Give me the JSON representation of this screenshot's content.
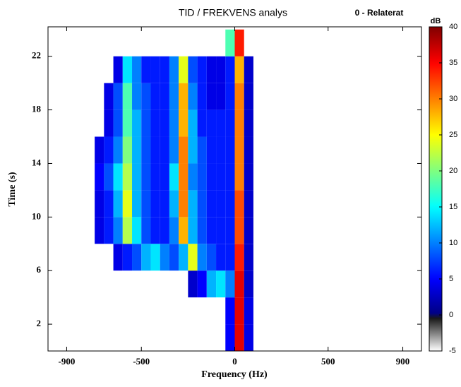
{
  "chart_data": {
    "type": "heatmap",
    "title": "TID / FREKVENS analys",
    "annotation": "0 - Relaterat",
    "x_label": "Frequency (Hz)",
    "y_label": "Time (s)",
    "xlim": [
      -1000,
      1000
    ],
    "ylim": [
      0,
      24.2
    ],
    "xticks": [
      -900,
      -500,
      0,
      500,
      900
    ],
    "yticks": [
      2,
      6,
      10,
      14,
      18,
      22
    ],
    "x_edges": [
      -800,
      -750,
      -700,
      -650,
      -600,
      -550,
      -500,
      -450,
      -400,
      -350,
      -300,
      -250,
      -200,
      -150,
      -100,
      -50,
      0,
      50,
      100
    ],
    "y_edges": [
      0,
      2,
      4,
      6,
      8,
      10,
      12,
      14,
      16,
      18,
      20,
      22,
      24
    ],
    "z": [
      [
        null,
        null,
        null,
        null,
        null,
        null,
        null,
        null,
        null,
        null,
        null,
        null,
        null,
        null,
        null,
        5,
        36,
        4
      ],
      [
        null,
        null,
        null,
        null,
        null,
        null,
        null,
        null,
        null,
        null,
        null,
        null,
        null,
        null,
        null,
        5,
        36,
        4
      ],
      [
        null,
        null,
        null,
        null,
        null,
        null,
        null,
        null,
        null,
        null,
        null,
        3,
        5,
        12,
        14,
        10,
        36,
        3
      ],
      [
        null,
        null,
        null,
        4,
        6,
        8,
        12,
        14,
        10,
        8,
        12,
        24,
        10,
        8,
        6,
        6,
        34,
        3
      ],
      [
        null,
        4,
        6,
        10,
        22,
        14,
        8,
        6,
        6,
        10,
        28,
        12,
        8,
        6,
        6,
        6,
        32,
        3
      ],
      [
        null,
        4,
        6,
        12,
        24,
        12,
        8,
        6,
        6,
        12,
        30,
        12,
        8,
        6,
        6,
        6,
        32,
        3
      ],
      [
        null,
        5,
        8,
        14,
        22,
        12,
        8,
        6,
        6,
        14,
        30,
        10,
        8,
        6,
        6,
        6,
        30,
        3
      ],
      [
        null,
        4,
        6,
        10,
        20,
        12,
        8,
        6,
        6,
        10,
        30,
        12,
        8,
        6,
        6,
        6,
        30,
        3
      ],
      [
        null,
        null,
        4,
        8,
        18,
        12,
        8,
        6,
        6,
        10,
        28,
        12,
        6,
        6,
        6,
        6,
        30,
        3
      ],
      [
        null,
        null,
        4,
        8,
        18,
        10,
        8,
        6,
        6,
        10,
        28,
        10,
        6,
        4,
        4,
        6,
        30,
        3
      ],
      [
        null,
        null,
        null,
        4,
        14,
        10,
        6,
        6,
        6,
        10,
        24,
        8,
        6,
        4,
        4,
        6,
        28,
        3
      ],
      [
        null,
        null,
        null,
        null,
        null,
        null,
        null,
        null,
        null,
        null,
        null,
        null,
        null,
        null,
        null,
        18,
        34,
        null
      ]
    ],
    "colormap": "jet",
    "colorbar": {
      "label": "dB",
      "lim": [
        -5,
        40
      ],
      "ticks": [
        40,
        35,
        30,
        25,
        20,
        15,
        10,
        5,
        0,
        -5
      ]
    }
  }
}
